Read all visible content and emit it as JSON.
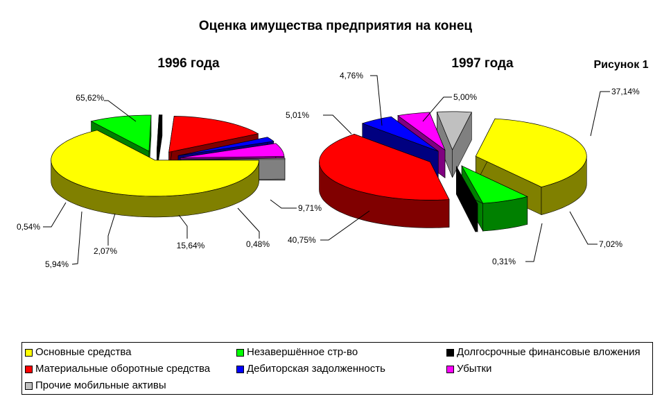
{
  "chart_data": {
    "type": "pie",
    "title": "Оценка имущества предприятия на конец",
    "figure_label": "Рисунок 1",
    "categories": [
      "Основные средства",
      "Незавершённое стр-во",
      "Долгосрочные финансовые вложения",
      "Материальные оборотные средства",
      "Дебиторская задолженность",
      "Убытки",
      "Прочие мобильные активы"
    ],
    "colors": [
      "#ffff00",
      "#00ff00",
      "#000000",
      "#ff0000",
      "#0000ff",
      "#ff00ff",
      "#c0c0c0"
    ],
    "side_colors": [
      "#808000",
      "#008000",
      "#000000",
      "#800000",
      "#000080",
      "#800080",
      "#808080"
    ],
    "legend_position": "bottom",
    "pies": [
      {
        "title": "1996 года",
        "values": [
          65.62,
          9.71,
          0.48,
          15.64,
          2.07,
          5.94,
          0.54
        ],
        "labels": [
          "65,62%",
          "9,71%",
          "0,48%",
          "15,64%",
          "2,07%",
          "5,94%",
          "0,54%"
        ]
      },
      {
        "title": "1997 года",
        "values": [
          37.14,
          7.02,
          0.31,
          40.75,
          5.01,
          4.76,
          5.0
        ],
        "labels": [
          "37,14%",
          "7,02%",
          "0,31%",
          "40,75%",
          "5,01%",
          "4,76%",
          "5,00%"
        ]
      }
    ]
  }
}
